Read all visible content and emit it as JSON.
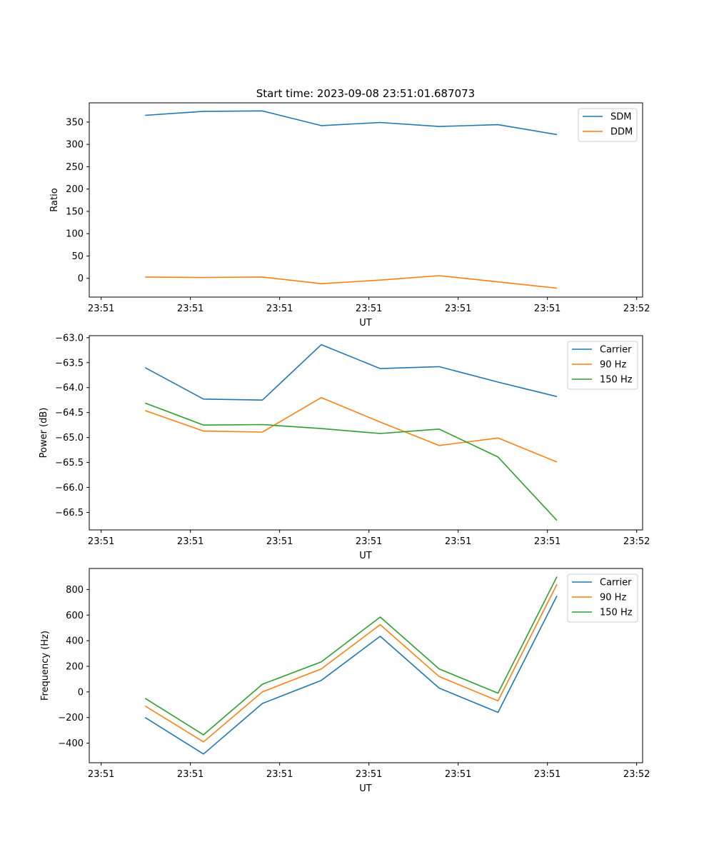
{
  "chart_data": [
    {
      "type": "line",
      "title": "Start time: 2023-09-08 23:51:01.687073",
      "xlabel": "UT",
      "ylabel": "Ratio",
      "xlim": [
        -0.2,
        9.1
      ],
      "ylim": [
        -42,
        393
      ],
      "x_ticks": [
        0,
        1.5,
        3,
        4.5,
        6,
        7.5,
        9
      ],
      "x_tick_labels": [
        "23:51",
        "23:51",
        "23:51",
        "23:51",
        "23:51",
        "23:51",
        "23:52"
      ],
      "y_ticks": [
        0,
        50,
        100,
        150,
        200,
        250,
        300,
        350
      ],
      "y_tick_labels": [
        "0",
        "50",
        "100",
        "150",
        "200",
        "250",
        "300",
        "350"
      ],
      "legend_position": "top-right",
      "x": [
        0.74,
        1.72,
        2.71,
        3.7,
        4.69,
        5.68,
        6.67,
        7.66
      ],
      "series": [
        {
          "name": "SDM",
          "color": "#1f77b4",
          "values": [
            365,
            374,
            375,
            342,
            349,
            340,
            344,
            322
          ]
        },
        {
          "name": "DDM",
          "color": "#ff7f0e",
          "values": [
            3,
            2,
            3,
            -12,
            -4,
            6,
            -8,
            -22
          ]
        }
      ]
    },
    {
      "type": "line",
      "title": "",
      "xlabel": "UT",
      "ylabel": "Power (dB)",
      "xlim": [
        -0.2,
        9.1
      ],
      "ylim": [
        -66.85,
        -62.96
      ],
      "x_ticks": [
        0,
        1.5,
        3,
        4.5,
        6,
        7.5,
        9
      ],
      "x_tick_labels": [
        "23:51",
        "23:51",
        "23:51",
        "23:51",
        "23:51",
        "23:51",
        "23:52"
      ],
      "y_ticks": [
        -63.0,
        -63.5,
        -64.0,
        -64.5,
        -65.0,
        -65.5,
        -66.0,
        -66.5
      ],
      "y_tick_labels": [
        "−63.0",
        "−63.5",
        "−64.0",
        "−64.5",
        "−65.0",
        "−65.5",
        "−66.0",
        "−66.5"
      ],
      "legend_position": "top-right",
      "x": [
        0.74,
        1.72,
        2.71,
        3.7,
        4.69,
        5.68,
        6.67,
        7.66
      ],
      "series": [
        {
          "name": "Carrier",
          "color": "#1f77b4",
          "values": [
            -63.6,
            -64.23,
            -64.25,
            -63.14,
            -63.62,
            -63.58,
            -63.89,
            -64.18
          ]
        },
        {
          "name": "90 Hz",
          "color": "#ff7f0e",
          "values": [
            -64.46,
            -64.87,
            -64.89,
            -64.2,
            -64.69,
            -65.16,
            -65.01,
            -65.49
          ]
        },
        {
          "name": "150 Hz",
          "color": "#2ca02c",
          "values": [
            -64.31,
            -64.75,
            -64.74,
            -64.82,
            -64.92,
            -64.83,
            -65.39,
            -66.66
          ]
        }
      ]
    },
    {
      "type": "line",
      "title": "",
      "xlabel": "UT",
      "ylabel": "Frequency (Hz)",
      "xlim": [
        -0.2,
        9.1
      ],
      "ylim": [
        -553,
        964
      ],
      "x_ticks": [
        0,
        1.5,
        3,
        4.5,
        6,
        7.5,
        9
      ],
      "x_tick_labels": [
        "23:51",
        "23:51",
        "23:51",
        "23:51",
        "23:51",
        "23:51",
        "23:52"
      ],
      "y_ticks": [
        -400,
        -200,
        0,
        200,
        400,
        600,
        800
      ],
      "y_tick_labels": [
        "−400",
        "−200",
        "0",
        "200",
        "400",
        "600",
        "800"
      ],
      "legend_position": "top-right",
      "x": [
        0.74,
        1.72,
        2.71,
        3.7,
        4.69,
        5.68,
        6.67,
        7.66
      ],
      "series": [
        {
          "name": "Carrier",
          "color": "#1f77b4",
          "values": [
            -200,
            -485,
            -90,
            90,
            435,
            30,
            -160,
            750
          ]
        },
        {
          "name": "90 Hz",
          "color": "#ff7f0e",
          "values": [
            -110,
            -390,
            0,
            180,
            525,
            120,
            -70,
            840
          ]
        },
        {
          "name": "150 Hz",
          "color": "#2ca02c",
          "values": [
            -50,
            -335,
            60,
            235,
            585,
            180,
            -10,
            900
          ]
        }
      ]
    }
  ]
}
